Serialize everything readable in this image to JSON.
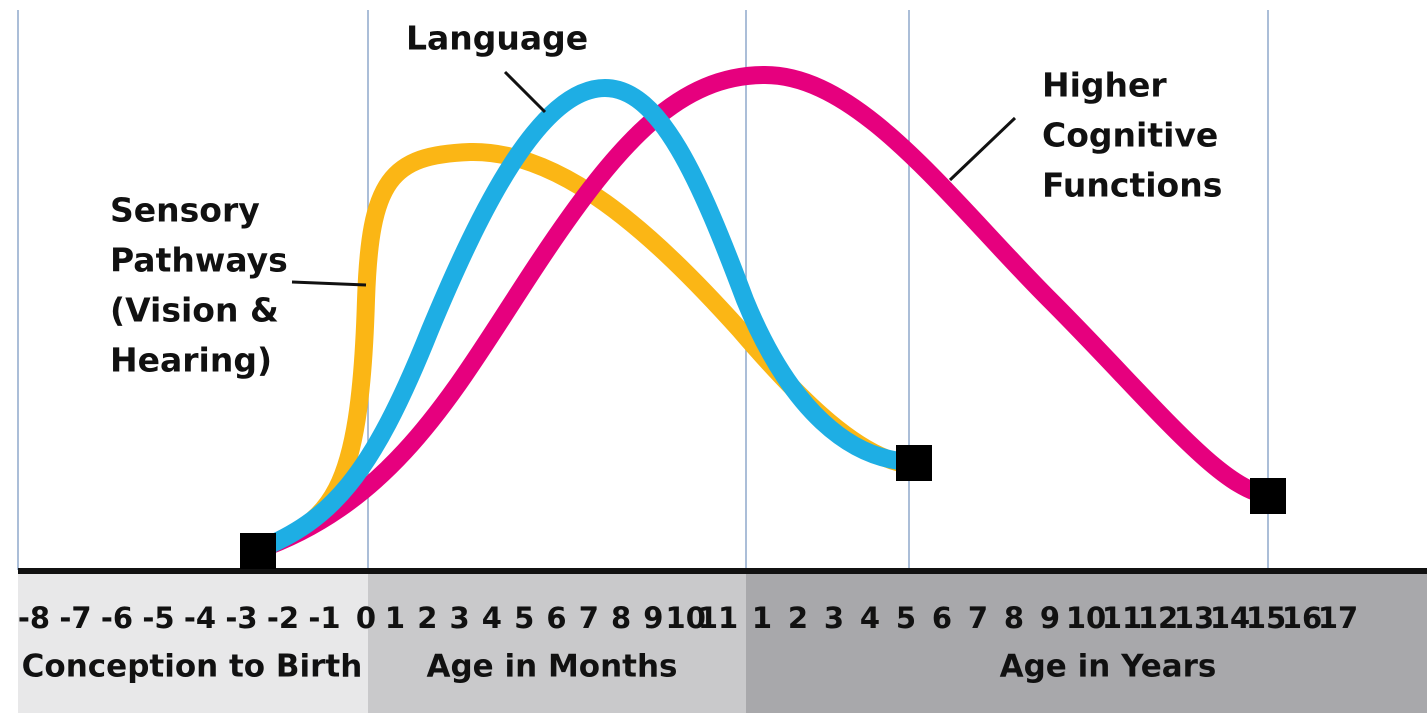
{
  "labels": {
    "language": "Language",
    "higher": [
      "Higher",
      "Cognitive",
      "Functions"
    ],
    "sensory": [
      "Sensory",
      "Pathways",
      "(Vision &",
      "Hearing)"
    ]
  },
  "axis": {
    "prenatal": {
      "ticks": [
        "-8",
        "-7",
        "-6",
        "-5",
        "-4",
        "-3",
        "-2",
        "-1",
        "0"
      ],
      "label": "Conception to Birth"
    },
    "months": {
      "ticks": [
        "1",
        "2",
        "3",
        "4",
        "5",
        "6",
        "7",
        "8",
        "9",
        "10",
        "11"
      ],
      "label": "Age in Months"
    },
    "years": {
      "ticks": [
        "1",
        "2",
        "3",
        "4",
        "5",
        "6",
        "7",
        "8",
        "9",
        "10",
        "11",
        "12",
        "13",
        "14",
        "15",
        "16",
        "17"
      ],
      "label": "Age in Years"
    }
  }
}
